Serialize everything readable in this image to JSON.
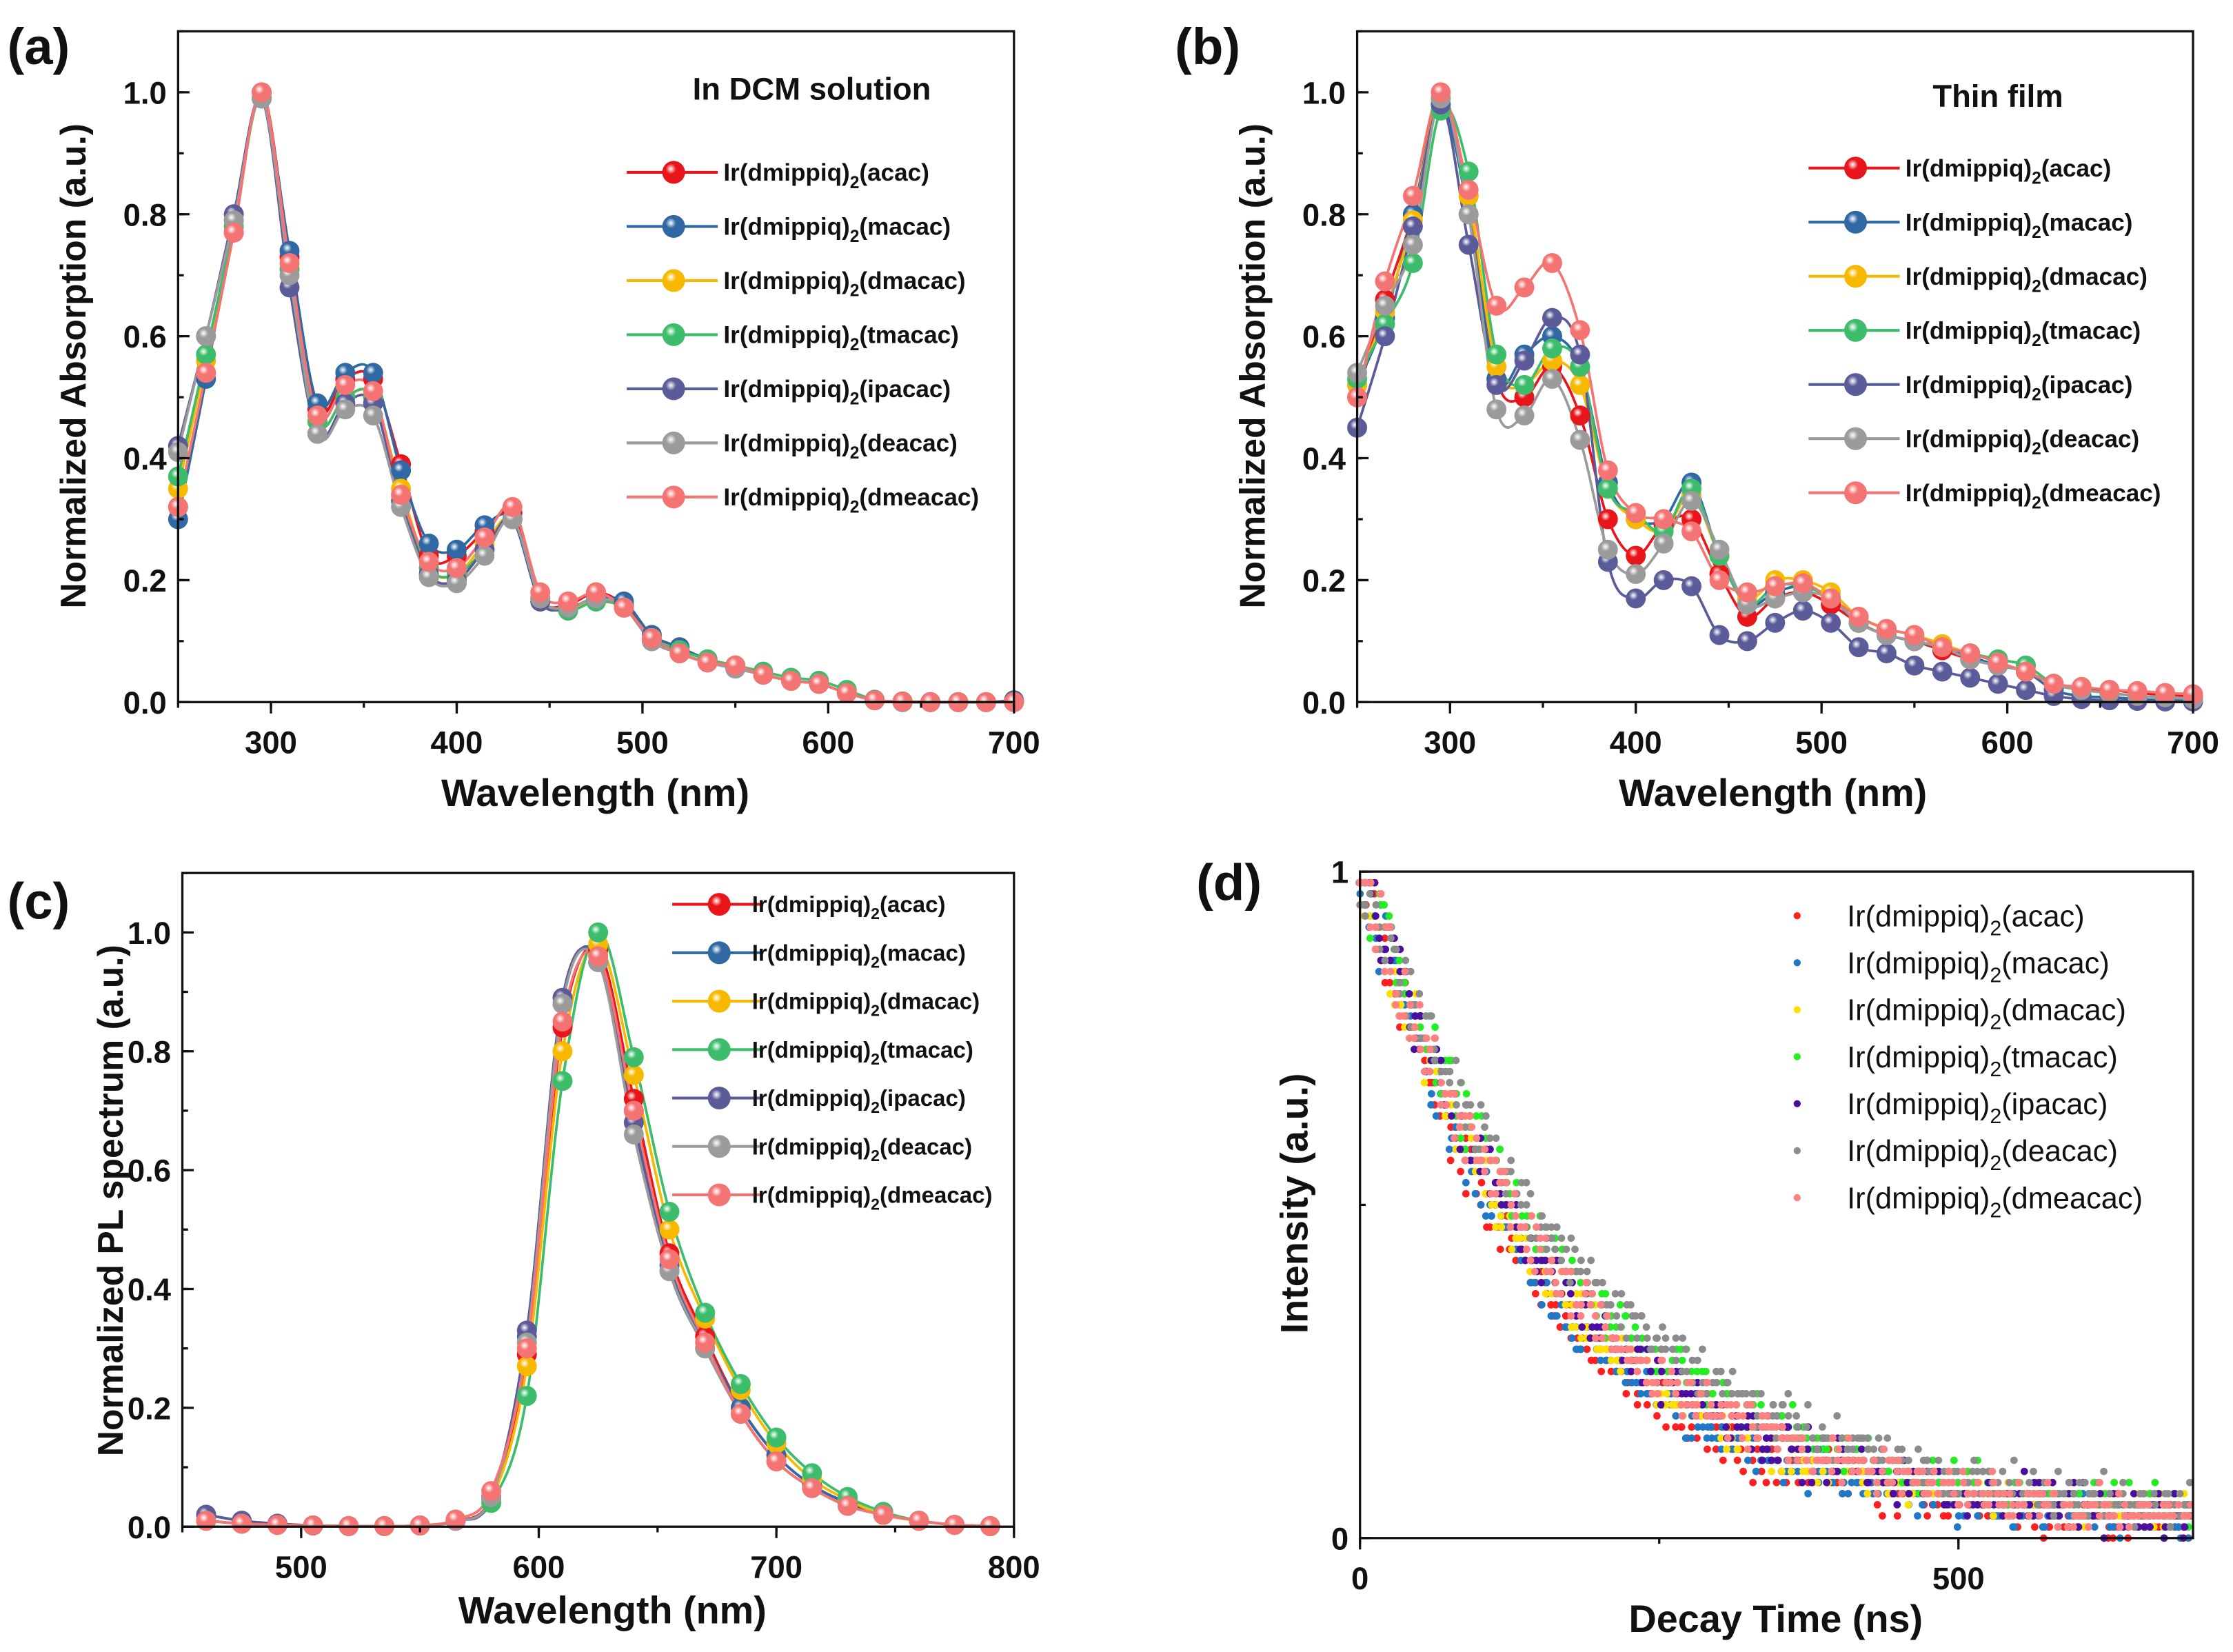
{
  "legend_prefix": "Ir(dmippiq)",
  "legend_sub": "2",
  "chart_data": [
    {
      "panel": "(a)",
      "type": "line",
      "title": "In DCM solution",
      "xlabel": "Wavelength (nm)",
      "ylabel": "Normalized Absorption (a.u.)",
      "xlim": [
        250,
        700
      ],
      "ylim": [
        0,
        1.1
      ],
      "xticks": [
        300,
        400,
        500,
        600,
        700
      ],
      "yticks": [
        0.0,
        0.2,
        0.4,
        0.6,
        0.8,
        1.0
      ],
      "x": [
        250,
        265,
        280,
        295,
        310,
        325,
        340,
        355,
        370,
        385,
        400,
        415,
        430,
        445,
        460,
        475,
        490,
        505,
        520,
        535,
        550,
        565,
        580,
        595,
        610,
        625,
        640,
        655,
        670,
        685,
        700
      ],
      "series": [
        {
          "name": "(acac)",
          "color": "#e8161b",
          "values": [
            0.32,
            0.54,
            0.77,
            1.0,
            0.73,
            0.48,
            0.53,
            0.53,
            0.39,
            0.24,
            0.24,
            0.28,
            0.31,
            0.17,
            0.16,
            0.18,
            0.16,
            0.11,
            0.09,
            0.07,
            0.06,
            0.045,
            0.035,
            0.03,
            0.015,
            0.003,
            0.001,
            0,
            0,
            0,
            0
          ]
        },
        {
          "name": "(macac)",
          "color": "#2f68a3",
          "values": [
            0.3,
            0.53,
            0.79,
            0.99,
            0.74,
            0.49,
            0.54,
            0.54,
            0.38,
            0.26,
            0.25,
            0.29,
            0.3,
            0.165,
            0.155,
            0.17,
            0.165,
            0.11,
            0.09,
            0.07,
            0.06,
            0.045,
            0.035,
            0.03,
            0.015,
            0.003,
            0.001,
            0,
            0,
            0,
            0.003
          ]
        },
        {
          "name": "(dmacac)",
          "color": "#f6b900",
          "values": [
            0.35,
            0.56,
            0.78,
            0.99,
            0.71,
            0.46,
            0.5,
            0.5,
            0.35,
            0.22,
            0.21,
            0.26,
            0.3,
            0.17,
            0.155,
            0.165,
            0.155,
            0.105,
            0.085,
            0.07,
            0.06,
            0.045,
            0.035,
            0.03,
            0.015,
            0.003,
            0,
            0,
            0,
            0,
            0
          ]
        },
        {
          "name": "(tmacac)",
          "color": "#3dbd6b",
          "values": [
            0.37,
            0.57,
            0.78,
            0.99,
            0.71,
            0.46,
            0.5,
            0.5,
            0.34,
            0.22,
            0.21,
            0.25,
            0.3,
            0.17,
            0.15,
            0.165,
            0.155,
            0.105,
            0.085,
            0.07,
            0.06,
            0.05,
            0.04,
            0.035,
            0.02,
            0.004,
            0,
            0,
            0,
            0,
            0
          ]
        },
        {
          "name": "(ipacac)",
          "color": "#5a5b98",
          "values": [
            0.42,
            0.6,
            0.8,
            0.99,
            0.68,
            0.44,
            0.49,
            0.49,
            0.33,
            0.21,
            0.2,
            0.25,
            0.3,
            0.165,
            0.155,
            0.17,
            0.155,
            0.1,
            0.08,
            0.065,
            0.055,
            0.045,
            0.035,
            0.03,
            0.015,
            0.003,
            0,
            0,
            0,
            0,
            0.002
          ]
        },
        {
          "name": "(deacac)",
          "color": "#9b9b9b",
          "values": [
            0.41,
            0.6,
            0.79,
            0.99,
            0.7,
            0.44,
            0.48,
            0.47,
            0.32,
            0.205,
            0.195,
            0.24,
            0.3,
            0.17,
            0.155,
            0.17,
            0.155,
            0.1,
            0.08,
            0.065,
            0.055,
            0.045,
            0.035,
            0.03,
            0.015,
            0.003,
            0,
            0,
            0,
            0,
            0
          ]
        },
        {
          "name": "(dmeacac)",
          "color": "#f47474",
          "values": [
            0.32,
            0.54,
            0.77,
            1.0,
            0.72,
            0.47,
            0.52,
            0.51,
            0.34,
            0.23,
            0.22,
            0.27,
            0.32,
            0.18,
            0.165,
            0.18,
            0.155,
            0.105,
            0.08,
            0.065,
            0.06,
            0.045,
            0.035,
            0.03,
            0.015,
            0.003,
            0.001,
            0,
            0,
            0,
            0
          ]
        }
      ]
    },
    {
      "panel": "(b)",
      "type": "line",
      "title": "Thin film",
      "xlabel": "Wavelength (nm)",
      "ylabel": "Normalized Absorption (a.u.)",
      "xlim": [
        250,
        700
      ],
      "ylim": [
        0,
        1.1
      ],
      "xticks": [
        300,
        400,
        500,
        600,
        700
      ],
      "yticks": [
        0.0,
        0.2,
        0.4,
        0.6,
        0.8,
        1.0
      ],
      "x": [
        250,
        265,
        280,
        295,
        310,
        325,
        340,
        355,
        370,
        385,
        400,
        415,
        430,
        445,
        460,
        475,
        490,
        505,
        520,
        535,
        550,
        565,
        580,
        595,
        610,
        625,
        640,
        655,
        670,
        685,
        700
      ],
      "series": [
        {
          "name": "(acac)",
          "color": "#e8161b",
          "values": [
            0.5,
            0.66,
            0.8,
            0.99,
            0.83,
            0.53,
            0.5,
            0.55,
            0.47,
            0.3,
            0.24,
            0.29,
            0.3,
            0.21,
            0.14,
            0.17,
            0.18,
            0.16,
            0.13,
            0.11,
            0.1,
            0.085,
            0.07,
            0.06,
            0.05,
            0.03,
            0.02,
            0.02,
            0.015,
            0.012,
            0.01
          ]
        },
        {
          "name": "(macac)",
          "color": "#2f68a3",
          "values": [
            0.52,
            0.63,
            0.8,
            0.98,
            0.8,
            0.53,
            0.57,
            0.6,
            0.55,
            0.36,
            0.3,
            0.3,
            0.36,
            0.24,
            0.16,
            0.18,
            0.19,
            0.17,
            0.13,
            0.11,
            0.1,
            0.09,
            0.075,
            0.06,
            0.05,
            0.02,
            0.01,
            0.008,
            0.005,
            0.003,
            0.002
          ]
        },
        {
          "name": "(dmacac)",
          "color": "#f6b900",
          "values": [
            0.52,
            0.64,
            0.79,
            0.99,
            0.83,
            0.55,
            0.52,
            0.56,
            0.52,
            0.35,
            0.3,
            0.28,
            0.34,
            0.24,
            0.17,
            0.2,
            0.2,
            0.18,
            0.14,
            0.12,
            0.11,
            0.095,
            0.08,
            0.07,
            0.06,
            0.03,
            0.02,
            0.015,
            0.01,
            0.008,
            0.005
          ]
        },
        {
          "name": "(tmacac)",
          "color": "#3dbd6b",
          "values": [
            0.53,
            0.62,
            0.72,
            0.97,
            0.87,
            0.57,
            0.52,
            0.58,
            0.55,
            0.35,
            0.31,
            0.28,
            0.35,
            0.24,
            0.16,
            0.19,
            0.19,
            0.17,
            0.13,
            0.11,
            0.1,
            0.09,
            0.08,
            0.07,
            0.06,
            0.03,
            0.02,
            0.015,
            0.01,
            0.008,
            0.005
          ]
        },
        {
          "name": "(ipacac)",
          "color": "#5a5b98",
          "values": [
            0.45,
            0.6,
            0.78,
            0.98,
            0.75,
            0.52,
            0.56,
            0.63,
            0.57,
            0.23,
            0.17,
            0.2,
            0.19,
            0.11,
            0.1,
            0.13,
            0.15,
            0.13,
            0.09,
            0.08,
            0.06,
            0.05,
            0.04,
            0.03,
            0.02,
            0.01,
            0.005,
            0.003,
            0.002,
            0.001,
            0.001
          ]
        },
        {
          "name": "(deacac)",
          "color": "#9b9b9b",
          "values": [
            0.54,
            0.65,
            0.75,
            0.99,
            0.8,
            0.48,
            0.47,
            0.53,
            0.43,
            0.25,
            0.21,
            0.26,
            0.33,
            0.25,
            0.16,
            0.17,
            0.18,
            0.17,
            0.13,
            0.11,
            0.1,
            0.09,
            0.07,
            0.06,
            0.05,
            0.03,
            0.02,
            0.015,
            0.01,
            0.008,
            0.005
          ]
        },
        {
          "name": "(dmeacac)",
          "color": "#f47474",
          "values": [
            0.5,
            0.69,
            0.83,
            1.0,
            0.84,
            0.65,
            0.68,
            0.72,
            0.61,
            0.38,
            0.31,
            0.3,
            0.28,
            0.2,
            0.18,
            0.19,
            0.195,
            0.17,
            0.14,
            0.12,
            0.11,
            0.09,
            0.08,
            0.065,
            0.05,
            0.03,
            0.025,
            0.02,
            0.018,
            0.015,
            0.013
          ]
        }
      ]
    },
    {
      "panel": "(c)",
      "type": "line",
      "title": "",
      "xlabel": "Wavelength (nm)",
      "ylabel": "Normalized PL spectrum (a.u.)",
      "xlim": [
        450,
        800
      ],
      "ylim": [
        0,
        1.1
      ],
      "xticks": [
        500,
        600,
        700,
        800
      ],
      "yticks": [
        0.0,
        0.2,
        0.4,
        0.6,
        0.8,
        1.0
      ],
      "x": [
        460,
        475,
        490,
        505,
        520,
        535,
        550,
        565,
        580,
        595,
        610,
        625,
        640,
        655,
        670,
        685,
        700,
        715,
        730,
        745,
        760,
        775,
        790
      ],
      "series": [
        {
          "name": "(acac)",
          "color": "#e8161b",
          "values": [
            0.01,
            0.005,
            0.003,
            0.002,
            0.001,
            0.001,
            0.002,
            0.01,
            0.05,
            0.29,
            0.84,
            0.97,
            0.72,
            0.46,
            0.32,
            0.2,
            0.12,
            0.07,
            0.04,
            0.02,
            0.01,
            0.003,
            0.001
          ]
        },
        {
          "name": "(macac)",
          "color": "#2f68a3",
          "values": [
            0.02,
            0.01,
            0.005,
            0.002,
            0.001,
            0.001,
            0.002,
            0.01,
            0.05,
            0.32,
            0.88,
            0.96,
            0.7,
            0.44,
            0.31,
            0.2,
            0.12,
            0.07,
            0.04,
            0.02,
            0.01,
            0.003,
            0.001
          ]
        },
        {
          "name": "(dmacac)",
          "color": "#f6b900",
          "values": [
            0.01,
            0.005,
            0.003,
            0.002,
            0.001,
            0.001,
            0.002,
            0.01,
            0.045,
            0.27,
            0.8,
            0.98,
            0.76,
            0.5,
            0.35,
            0.23,
            0.14,
            0.08,
            0.045,
            0.02,
            0.01,
            0.003,
            0.001
          ]
        },
        {
          "name": "(tmacac)",
          "color": "#3dbd6b",
          "values": [
            0.01,
            0.005,
            0.003,
            0.002,
            0.001,
            0.001,
            0.002,
            0.01,
            0.04,
            0.22,
            0.75,
            1.0,
            0.79,
            0.53,
            0.36,
            0.24,
            0.15,
            0.09,
            0.05,
            0.025,
            0.01,
            0.003,
            0.001
          ]
        },
        {
          "name": "(ipacac)",
          "color": "#5a5b98",
          "values": [
            0.02,
            0.01,
            0.005,
            0.002,
            0.001,
            0.001,
            0.002,
            0.01,
            0.05,
            0.33,
            0.89,
            0.95,
            0.68,
            0.43,
            0.3,
            0.19,
            0.11,
            0.065,
            0.035,
            0.02,
            0.01,
            0.003,
            0.001
          ]
        },
        {
          "name": "(deacac)",
          "color": "#9b9b9b",
          "values": [
            0.01,
            0.005,
            0.003,
            0.002,
            0.001,
            0.001,
            0.002,
            0.01,
            0.05,
            0.31,
            0.88,
            0.95,
            0.66,
            0.43,
            0.3,
            0.19,
            0.11,
            0.065,
            0.035,
            0.02,
            0.01,
            0.003,
            0.001
          ]
        },
        {
          "name": "(dmeacac)",
          "color": "#f47474",
          "values": [
            0.01,
            0.005,
            0.003,
            0.002,
            0.001,
            0.001,
            0.002,
            0.012,
            0.06,
            0.3,
            0.85,
            0.96,
            0.7,
            0.45,
            0.31,
            0.19,
            0.11,
            0.065,
            0.035,
            0.02,
            0.01,
            0.003,
            0.001
          ]
        }
      ]
    },
    {
      "panel": "(d)",
      "type": "scatter",
      "title": "",
      "xlabel": "Decay Time (ns)",
      "ylabel": "Intensity (a.u.)",
      "xlim": [
        0,
        696
      ],
      "ylim": [
        0,
        1
      ],
      "xticks": [
        0,
        500
      ],
      "yticks": [
        0,
        1
      ],
      "model": "normalized exponential decay, estimated lifetimes (ns)",
      "series": [
        {
          "name": "(acac)",
          "color": "#ff1f1f",
          "tau_ns": 150
        },
        {
          "name": "(macac)",
          "color": "#1f78c8",
          "tau_ns": 155
        },
        {
          "name": "(dmacac)",
          "color": "#ffe000",
          "tau_ns": 165
        },
        {
          "name": "(tmacac)",
          "color": "#22ee22",
          "tau_ns": 185
        },
        {
          "name": "(ipacac)",
          "color": "#4a0fa0",
          "tau_ns": 170
        },
        {
          "name": "(deacac)",
          "color": "#8c8c8c",
          "tau_ns": 195
        },
        {
          "name": "(dmeacac)",
          "color": "#ff8080",
          "tau_ns": 172
        }
      ]
    }
  ]
}
